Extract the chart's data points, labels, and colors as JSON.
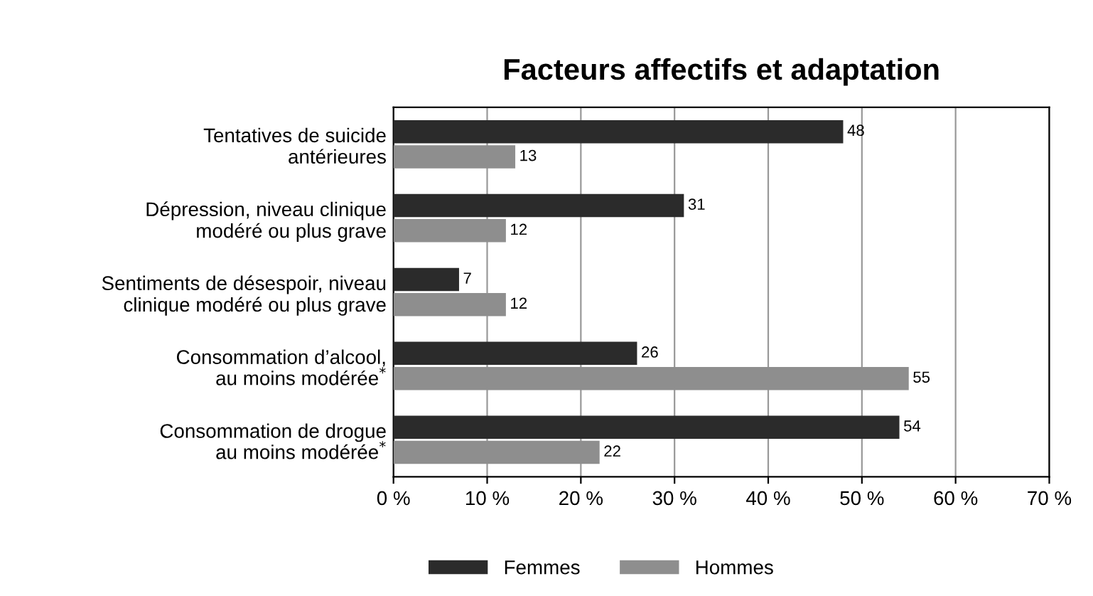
{
  "chart_data": {
    "type": "bar",
    "orientation": "horizontal",
    "title": "Facteurs affectifs et adaptation",
    "categories": [
      "Tentatives de suicide\nantérieures",
      "Dépression, niveau clinique\nmodéré ou plus grave",
      "Sentiments de désespoir, niveau\nclinique modéré ou plus grave",
      "Consommation d’alcool,\nau moins modérée$^{*}$",
      "Consommation de drogue\nau moins modérée$^{*}$"
    ],
    "series": [
      {
        "name": "Femmes",
        "color": "#2b2b2b",
        "values": [
          48,
          31,
          7,
          26,
          54
        ]
      },
      {
        "name": "Hommes",
        "color": "#8e8e8e",
        "values": [
          13,
          12,
          12,
          55,
          22
        ]
      }
    ],
    "xlim": [
      0,
      70
    ],
    "xticks": [
      {
        "value": 0,
        "label": "0 %"
      },
      {
        "value": 10,
        "label": "10 %"
      },
      {
        "value": 20,
        "label": "20 %"
      },
      {
        "value": 30,
        "label": "30 %"
      },
      {
        "value": 40,
        "label": "40 %"
      },
      {
        "value": 50,
        "label": "50 %"
      },
      {
        "value": 60,
        "label": "60 %"
      },
      {
        "value": 70,
        "label": "70 %"
      }
    ],
    "grid": "x",
    "legend": "bottom",
    "data_labels": true
  }
}
